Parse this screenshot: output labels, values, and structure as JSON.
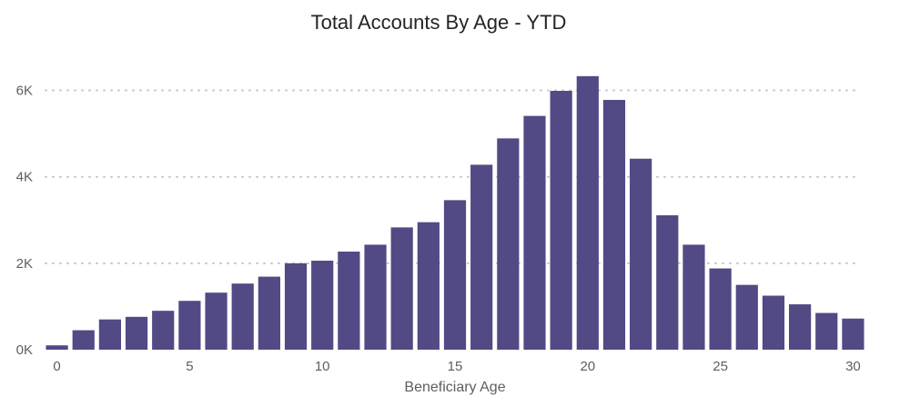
{
  "chart_data": {
    "type": "bar",
    "title": "Total Accounts By Age - YTD",
    "xlabel": "Beneficiary Age",
    "ylabel": "",
    "x": [
      0,
      1,
      2,
      3,
      4,
      5,
      6,
      7,
      8,
      9,
      10,
      11,
      12,
      13,
      14,
      15,
      16,
      17,
      18,
      19,
      20,
      21,
      22,
      23,
      24,
      25,
      26,
      27,
      28,
      29,
      30
    ],
    "values": [
      100,
      450,
      700,
      760,
      900,
      1130,
      1320,
      1530,
      1690,
      2000,
      2060,
      2270,
      2430,
      2830,
      2950,
      3460,
      4280,
      4890,
      5410,
      5990,
      6330,
      5780,
      4420,
      3110,
      2430,
      1880,
      1500,
      1250,
      1050,
      850,
      720
    ],
    "ylim": [
      0,
      6600
    ],
    "yticks": [
      0,
      2000,
      4000,
      6000
    ],
    "yticklabels": [
      "0K",
      "2K",
      "4K",
      "6K"
    ],
    "xticks": [
      0,
      5,
      10,
      15,
      20,
      25,
      30
    ],
    "xticklabels": [
      "0",
      "5",
      "10",
      "15",
      "20",
      "25",
      "30"
    ],
    "grid": true,
    "bar_color": "#524a85"
  }
}
